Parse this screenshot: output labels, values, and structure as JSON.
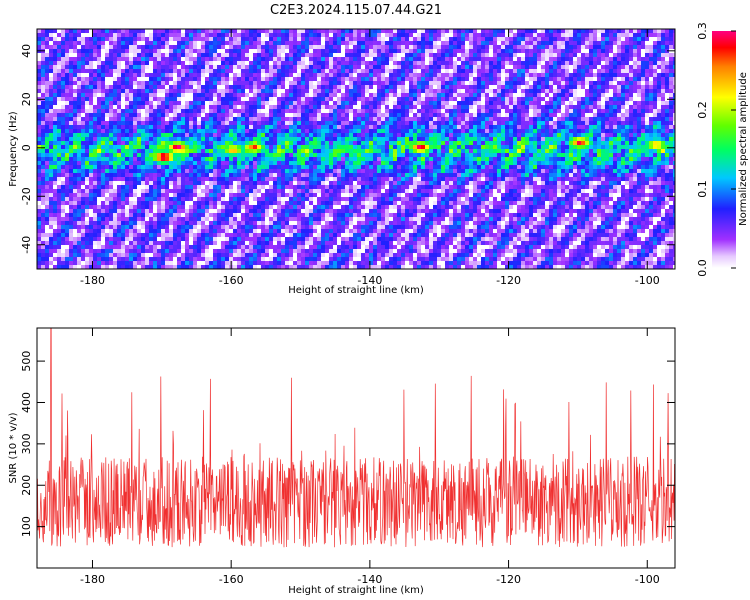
{
  "title": "C2E3.2024.115.07.44.G21",
  "chart_data": [
    {
      "type": "heatmap",
      "xlabel": "Height of straight line (km)",
      "ylabel": "Frequency (Hz)",
      "xlim": [
        -188,
        -96
      ],
      "ylim": [
        -50,
        49
      ],
      "xticks": [
        -180,
        -160,
        -140,
        -120,
        -100
      ],
      "yticks": [
        -40,
        -20,
        0,
        20,
        40
      ],
      "colorbar": {
        "label": "Normalized spectral amplitude",
        "range": [
          0.0,
          0.3
        ],
        "ticks": [
          0.0,
          0.1,
          0.2,
          0.3
        ],
        "tick_labels": [
          "0.0",
          "0.1",
          "0.2",
          "0.3"
        ]
      },
      "signal_band_hz": [
        -10,
        10
      ],
      "peak_cells": [
        {
          "x": -170,
          "y": -3,
          "value": 0.3
        },
        {
          "x": -168,
          "y": 1,
          "value": 0.28
        },
        {
          "x": -160,
          "y": 0,
          "value": 0.22
        },
        {
          "x": -157,
          "y": 1,
          "value": 0.24
        },
        {
          "x": -133,
          "y": 1,
          "value": 0.27
        },
        {
          "x": -110,
          "y": 3,
          "value": 0.26
        },
        {
          "x": -99,
          "y": 2,
          "value": 0.22
        }
      ]
    },
    {
      "type": "line",
      "xlabel": "Height of straight line (km)",
      "ylabel": "SNR (10 * v/v)",
      "xlim": [
        -188,
        -96
      ],
      "ylim": [
        0,
        580
      ],
      "xticks": [
        -180,
        -160,
        -140,
        -120,
        -100
      ],
      "yticks": [
        100,
        200,
        300,
        400,
        500
      ],
      "color": "#f03030",
      "series": [
        {
          "mean_snr": 160,
          "typical_range": [
            60,
            280
          ],
          "max": 580,
          "max_at_km": -186
        }
      ]
    }
  ]
}
